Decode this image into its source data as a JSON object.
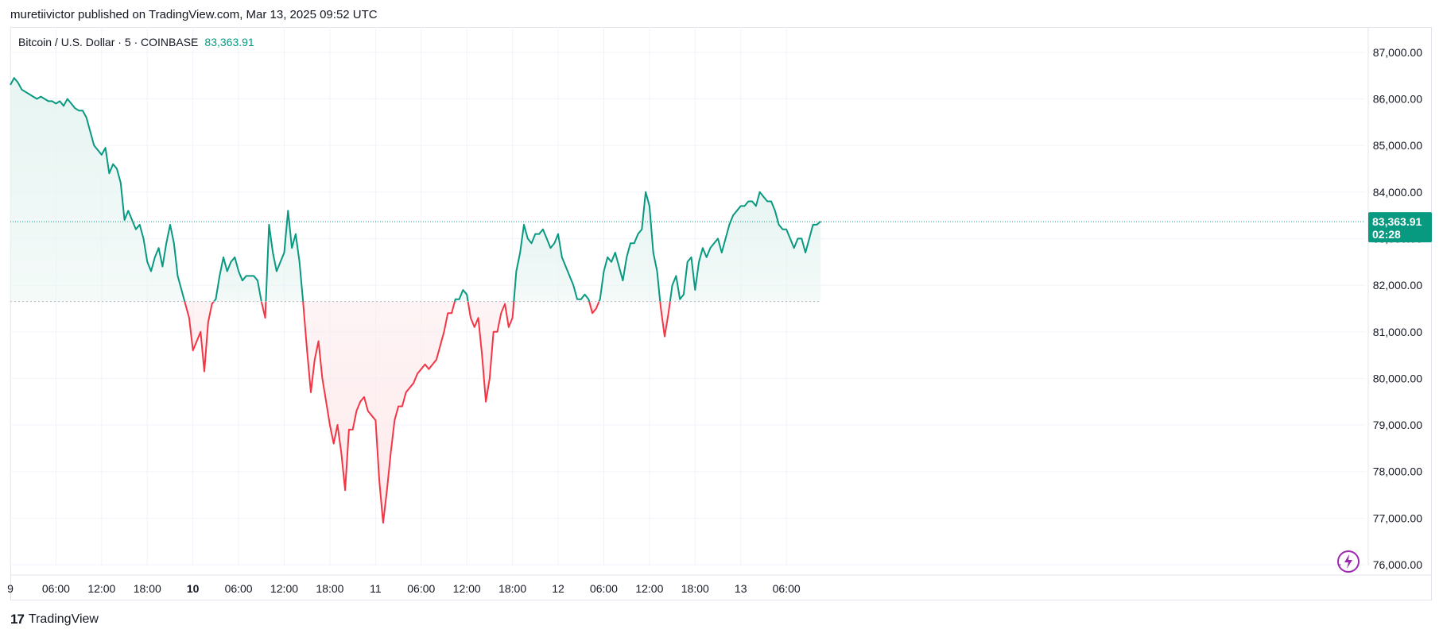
{
  "header": {
    "publish_line": "muretiivictor published on TradingView.com, Mar 13, 2025 09:52 UTC"
  },
  "legend": {
    "symbol": "Bitcoin / U.S. Dollar · 5 · COINBASE",
    "last_price": "83,363.91"
  },
  "price_label": {
    "value": "83,363.91",
    "countdown": "02:28"
  },
  "footer": {
    "brand": "TradingView",
    "logo_glyph": "17"
  },
  "icons": {
    "lightning": "lightning-icon"
  },
  "colors": {
    "up": "#089981",
    "down": "#f23645",
    "up_fill": "#e6f4f1",
    "down_fill": "#fde8ea",
    "grid": "#f0f3fa"
  },
  "chart_data": {
    "type": "area",
    "baseline": 81650,
    "last_value": 83363.91,
    "ylim": [
      75700,
      87450
    ],
    "y_ticks": [
      76000,
      77000,
      78000,
      79000,
      80000,
      81000,
      82000,
      83000,
      84000,
      85000,
      86000,
      87000
    ],
    "y_tick_labels": [
      "76,000.00",
      "77,000.00",
      "78,000.00",
      "79,000.00",
      "80,000.00",
      "81,000.00",
      "82,000.00",
      "83,000.00",
      "84,000.00",
      "85,000.00",
      "86,000.00",
      "87,000.00"
    ],
    "x_ticks": [
      {
        "t": 0,
        "label": "9",
        "bold": false
      },
      {
        "t": 6,
        "label": "06:00",
        "bold": false
      },
      {
        "t": 12,
        "label": "12:00",
        "bold": false
      },
      {
        "t": 18,
        "label": "18:00",
        "bold": false
      },
      {
        "t": 24,
        "label": "10",
        "bold": true
      },
      {
        "t": 30,
        "label": "06:00",
        "bold": false
      },
      {
        "t": 36,
        "label": "12:00",
        "bold": false
      },
      {
        "t": 42,
        "label": "18:00",
        "bold": false
      },
      {
        "t": 48,
        "label": "11",
        "bold": false
      },
      {
        "t": 54,
        "label": "06:00",
        "bold": false
      },
      {
        "t": 60,
        "label": "12:00",
        "bold": false
      },
      {
        "t": 66,
        "label": "18:00",
        "bold": false
      },
      {
        "t": 72,
        "label": "12",
        "bold": false
      },
      {
        "t": 78,
        "label": "06:00",
        "bold": false
      },
      {
        "t": 84,
        "label": "12:00",
        "bold": false
      },
      {
        "t": 90,
        "label": "18:00",
        "bold": false
      },
      {
        "t": 96,
        "label": "13",
        "bold": false
      },
      {
        "t": 102,
        "label": "06:00",
        "bold": false
      }
    ],
    "x_unit": "hours since Mar 9 00:00",
    "series": [
      {
        "points": [
          [
            0.0,
            86300
          ],
          [
            0.5,
            86450
          ],
          [
            1.0,
            86350
          ],
          [
            1.5,
            86200
          ],
          [
            2.0,
            86150
          ],
          [
            2.5,
            86100
          ],
          [
            3.0,
            86050
          ],
          [
            3.5,
            86000
          ],
          [
            4.0,
            86050
          ],
          [
            4.5,
            86000
          ],
          [
            5.0,
            85950
          ],
          [
            5.5,
            85950
          ],
          [
            6.0,
            85900
          ],
          [
            6.5,
            85950
          ],
          [
            7.0,
            85850
          ],
          [
            7.5,
            86000
          ],
          [
            8.0,
            85900
          ],
          [
            8.5,
            85800
          ],
          [
            9.0,
            85750
          ],
          [
            9.5,
            85750
          ],
          [
            10.0,
            85600
          ],
          [
            10.5,
            85300
          ],
          [
            11.0,
            85000
          ],
          [
            11.5,
            84900
          ],
          [
            12.0,
            84800
          ],
          [
            12.5,
            84950
          ],
          [
            13.0,
            84400
          ],
          [
            13.5,
            84600
          ],
          [
            14.0,
            84500
          ],
          [
            14.5,
            84200
          ],
          [
            15.0,
            83400
          ],
          [
            15.5,
            83600
          ],
          [
            16.0,
            83400
          ],
          [
            16.5,
            83200
          ],
          [
            17.0,
            83300
          ],
          [
            17.5,
            83000
          ],
          [
            18.0,
            82500
          ],
          [
            18.5,
            82300
          ],
          [
            19.0,
            82600
          ],
          [
            19.5,
            82800
          ],
          [
            20.0,
            82400
          ],
          [
            20.5,
            82900
          ],
          [
            21.0,
            83300
          ],
          [
            21.5,
            82900
          ],
          [
            22.0,
            82200
          ],
          [
            22.5,
            81900
          ],
          [
            23.0,
            81600
          ],
          [
            23.5,
            81300
          ],
          [
            24.0,
            80600
          ],
          [
            24.5,
            80800
          ],
          [
            25.0,
            81000
          ],
          [
            25.5,
            80150
          ],
          [
            26.0,
            81200
          ],
          [
            26.5,
            81600
          ],
          [
            27.0,
            81700
          ],
          [
            27.5,
            82200
          ],
          [
            28.0,
            82600
          ],
          [
            28.5,
            82300
          ],
          [
            29.0,
            82500
          ],
          [
            29.5,
            82600
          ],
          [
            30.0,
            82300
          ],
          [
            30.5,
            82100
          ],
          [
            31.0,
            82200
          ],
          [
            31.5,
            82200
          ],
          [
            32.0,
            82200
          ],
          [
            32.5,
            82100
          ],
          [
            33.0,
            81650
          ],
          [
            33.5,
            81300
          ],
          [
            34.0,
            83300
          ],
          [
            34.5,
            82700
          ],
          [
            35.0,
            82300
          ],
          [
            35.5,
            82500
          ],
          [
            36.0,
            82700
          ],
          [
            36.5,
            83600
          ],
          [
            37.0,
            82800
          ],
          [
            37.5,
            83100
          ],
          [
            38.0,
            82500
          ],
          [
            38.5,
            81600
          ],
          [
            39.0,
            80600
          ],
          [
            39.5,
            79700
          ],
          [
            40.0,
            80400
          ],
          [
            40.5,
            80800
          ],
          [
            41.0,
            80000
          ],
          [
            41.5,
            79500
          ],
          [
            42.0,
            79000
          ],
          [
            42.5,
            78600
          ],
          [
            43.0,
            79000
          ],
          [
            43.5,
            78400
          ],
          [
            44.0,
            77600
          ],
          [
            44.5,
            78900
          ],
          [
            45.0,
            78900
          ],
          [
            45.5,
            79300
          ],
          [
            46.0,
            79500
          ],
          [
            46.5,
            79600
          ],
          [
            47.0,
            79300
          ],
          [
            47.5,
            79200
          ],
          [
            48.0,
            79100
          ],
          [
            48.5,
            77800
          ],
          [
            49.0,
            76900
          ],
          [
            49.5,
            77600
          ],
          [
            50.0,
            78400
          ],
          [
            50.5,
            79100
          ],
          [
            51.0,
            79400
          ],
          [
            51.5,
            79400
          ],
          [
            52.0,
            79700
          ],
          [
            52.5,
            79800
          ],
          [
            53.0,
            79900
          ],
          [
            53.5,
            80100
          ],
          [
            54.0,
            80200
          ],
          [
            54.5,
            80300
          ],
          [
            55.0,
            80200
          ],
          [
            55.5,
            80300
          ],
          [
            56.0,
            80400
          ],
          [
            56.5,
            80700
          ],
          [
            57.0,
            81000
          ],
          [
            57.5,
            81400
          ],
          [
            58.0,
            81400
          ],
          [
            58.5,
            81700
          ],
          [
            59.0,
            81700
          ],
          [
            59.5,
            81900
          ],
          [
            60.0,
            81800
          ],
          [
            60.5,
            81300
          ],
          [
            61.0,
            81100
          ],
          [
            61.5,
            81300
          ],
          [
            62.0,
            80500
          ],
          [
            62.5,
            79500
          ],
          [
            63.0,
            80000
          ],
          [
            63.5,
            81000
          ],
          [
            64.0,
            81000
          ],
          [
            64.5,
            81400
          ],
          [
            65.0,
            81600
          ],
          [
            65.5,
            81100
          ],
          [
            66.0,
            81300
          ],
          [
            66.5,
            82300
          ],
          [
            67.0,
            82700
          ],
          [
            67.5,
            83300
          ],
          [
            68.0,
            83000
          ],
          [
            68.5,
            82900
          ],
          [
            69.0,
            83100
          ],
          [
            69.5,
            83100
          ],
          [
            70.0,
            83200
          ],
          [
            70.5,
            83000
          ],
          [
            71.0,
            82800
          ],
          [
            71.5,
            82900
          ],
          [
            72.0,
            83100
          ],
          [
            72.5,
            82600
          ],
          [
            73.0,
            82400
          ],
          [
            73.5,
            82200
          ],
          [
            74.0,
            82000
          ],
          [
            74.5,
            81700
          ],
          [
            75.0,
            81700
          ],
          [
            75.5,
            81800
          ],
          [
            76.0,
            81700
          ],
          [
            76.5,
            81400
          ],
          [
            77.0,
            81500
          ],
          [
            77.5,
            81700
          ],
          [
            78.0,
            82300
          ],
          [
            78.5,
            82600
          ],
          [
            79.0,
            82500
          ],
          [
            79.5,
            82700
          ],
          [
            80.0,
            82400
          ],
          [
            80.5,
            82100
          ],
          [
            81.0,
            82600
          ],
          [
            81.5,
            82900
          ],
          [
            82.0,
            82900
          ],
          [
            82.5,
            83100
          ],
          [
            83.0,
            83200
          ],
          [
            83.5,
            84000
          ],
          [
            84.0,
            83700
          ],
          [
            84.5,
            82700
          ],
          [
            85.0,
            82300
          ],
          [
            85.5,
            81500
          ],
          [
            86.0,
            80900
          ],
          [
            86.5,
            81400
          ],
          [
            87.0,
            82000
          ],
          [
            87.5,
            82200
          ],
          [
            88.0,
            81700
          ],
          [
            88.5,
            81800
          ],
          [
            89.0,
            82500
          ],
          [
            89.5,
            82600
          ],
          [
            90.0,
            81900
          ],
          [
            90.5,
            82500
          ],
          [
            91.0,
            82800
          ],
          [
            91.5,
            82600
          ],
          [
            92.0,
            82800
          ],
          [
            92.5,
            82900
          ],
          [
            93.0,
            83000
          ],
          [
            93.5,
            82700
          ],
          [
            94.0,
            83000
          ],
          [
            94.5,
            83300
          ],
          [
            95.0,
            83500
          ],
          [
            95.5,
            83600
          ],
          [
            96.0,
            83700
          ],
          [
            96.5,
            83700
          ],
          [
            97.0,
            83800
          ],
          [
            97.5,
            83800
          ],
          [
            98.0,
            83700
          ],
          [
            98.5,
            84000
          ],
          [
            99.0,
            83900
          ],
          [
            99.5,
            83800
          ],
          [
            100.0,
            83800
          ],
          [
            100.5,
            83600
          ],
          [
            101.0,
            83300
          ],
          [
            101.5,
            83200
          ],
          [
            102.0,
            83200
          ],
          [
            102.5,
            83000
          ],
          [
            103.0,
            82800
          ],
          [
            103.5,
            83000
          ],
          [
            104.0,
            83000
          ],
          [
            104.5,
            82700
          ],
          [
            105.0,
            83000
          ],
          [
            105.5,
            83300
          ],
          [
            106.0,
            83300
          ],
          [
            106.5,
            83370
          ]
        ]
      }
    ]
  }
}
